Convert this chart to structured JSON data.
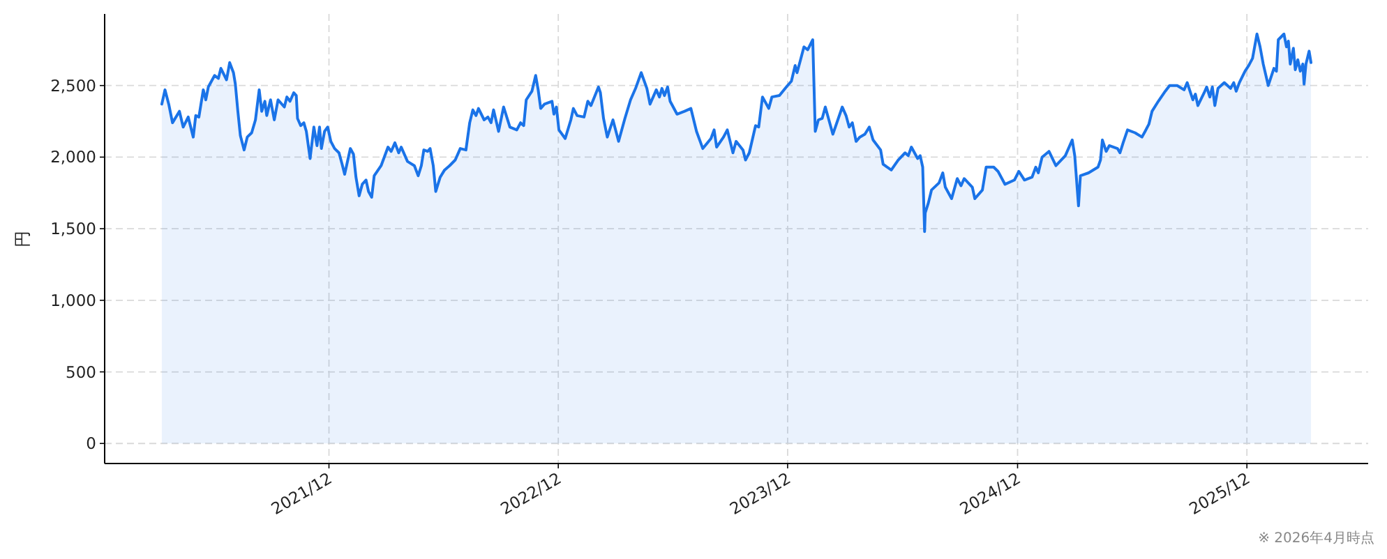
{
  "chart_data": {
    "type": "area",
    "ylabel": "円",
    "annotations": [
      "※ 2026年4月時点"
    ],
    "color": "#1a73e8",
    "grid": true,
    "xlim": [
      "2021-01-08",
      "2026-07-12"
    ],
    "ylim": [
      -140,
      3000
    ],
    "xticks": [
      {
        "value": "2021-12-31",
        "label": "2021/12"
      },
      {
        "value": "2022-12-31",
        "label": "2022/12"
      },
      {
        "value": "2023-12-31",
        "label": "2023/12"
      },
      {
        "value": "2024-12-31",
        "label": "2024/12"
      },
      {
        "value": "2025-12-31",
        "label": "2025/12"
      }
    ],
    "yticks": [
      0,
      500,
      {
        "value": 1000,
        "label": "1,000"
      },
      {
        "value": 1500,
        "label": "1,500"
      },
      {
        "value": 2000,
        "label": "2,000"
      },
      {
        "value": 2500,
        "label": "2,500"
      }
    ],
    "x": [
      "2021-04-09",
      "2021-04-14",
      "2021-04-20",
      "2021-04-26",
      "2021-05-07",
      "2021-05-13",
      "2021-05-21",
      "2021-05-29",
      "2021-06-02",
      "2021-06-07",
      "2021-06-14",
      "2021-06-18",
      "2021-06-22",
      "2021-07-02",
      "2021-07-08",
      "2021-07-12",
      "2021-07-21",
      "2021-07-26",
      "2021-08-01",
      "2021-08-04",
      "2021-08-08",
      "2021-08-12",
      "2021-08-18",
      "2021-08-23",
      "2021-08-30",
      "2021-09-05",
      "2021-09-11",
      "2021-09-15",
      "2021-09-20",
      "2021-09-23",
      "2021-09-29",
      "2021-10-05",
      "2021-10-11",
      "2021-10-21",
      "2021-10-25",
      "2021-10-30",
      "2021-11-05",
      "2021-11-09",
      "2021-11-11",
      "2021-11-16",
      "2021-11-21",
      "2021-11-25",
      "2021-12-01",
      "2021-12-07",
      "2021-12-12",
      "2021-12-16",
      "2021-12-19",
      "2021-12-24",
      "2021-12-29",
      "2022-01-03",
      "2022-01-09",
      "2022-01-16",
      "2022-01-21",
      "2022-01-25",
      "2022-01-30",
      "2022-02-03",
      "2022-02-08",
      "2022-02-12",
      "2022-02-17",
      "2022-02-22",
      "2022-02-28",
      "2022-03-04",
      "2022-03-09",
      "2022-03-13",
      "2022-03-24",
      "2022-04-04",
      "2022-04-09",
      "2022-04-15",
      "2022-04-21",
      "2022-04-25",
      "2022-05-05",
      "2022-05-16",
      "2022-05-22",
      "2022-05-27",
      "2022-05-31",
      "2022-06-06",
      "2022-06-10",
      "2022-06-15",
      "2022-06-19",
      "2022-06-26",
      "2022-07-03",
      "2022-07-11",
      "2022-07-20",
      "2022-07-28",
      "2022-08-06",
      "2022-08-12",
      "2022-08-17",
      "2022-08-22",
      "2022-08-26",
      "2022-09-04",
      "2022-09-10",
      "2022-09-15",
      "2022-09-19",
      "2022-09-27",
      "2022-10-05",
      "2022-10-15",
      "2022-10-26",
      "2022-11-01",
      "2022-11-06",
      "2022-11-10",
      "2022-11-19",
      "2022-11-25",
      "2022-11-29",
      "2022-12-03",
      "2022-12-09",
      "2022-12-21",
      "2022-12-24",
      "2022-12-28",
      "2023-01-01",
      "2023-01-11",
      "2023-01-20",
      "2023-01-24",
      "2023-01-30",
      "2023-02-10",
      "2023-02-16",
      "2023-02-21",
      "2023-03-05",
      "2023-03-08",
      "2023-03-13",
      "2023-03-19",
      "2023-03-28",
      "2023-04-06",
      "2023-04-16",
      "2023-04-25",
      "2023-05-03",
      "2023-05-12",
      "2023-05-21",
      "2023-05-26",
      "2023-06-05",
      "2023-06-10",
      "2023-06-14",
      "2023-06-18",
      "2023-06-23",
      "2023-06-27",
      "2023-07-08",
      "2023-07-20",
      "2023-07-30",
      "2023-08-08",
      "2023-08-18",
      "2023-08-31",
      "2023-09-05",
      "2023-09-09",
      "2023-09-20",
      "2023-09-26",
      "2023-10-05",
      "2023-10-10",
      "2023-10-21",
      "2023-10-25",
      "2023-10-31",
      "2023-11-10",
      "2023-11-15",
      "2023-11-21",
      "2023-12-01",
      "2023-12-06",
      "2023-12-18",
      "2023-12-29",
      "2024-01-06",
      "2024-01-12",
      "2024-01-15",
      "2024-01-20",
      "2024-01-26",
      "2024-02-01",
      "2024-02-09",
      "2024-02-13",
      "2024-02-18",
      "2024-02-24",
      "2024-02-29",
      "2024-03-12",
      "2024-03-27",
      "2024-04-02",
      "2024-04-07",
      "2024-04-12",
      "2024-04-18",
      "2024-04-24",
      "2024-05-02",
      "2024-05-09",
      "2024-05-15",
      "2024-05-27",
      "2024-05-31",
      "2024-06-13",
      "2024-06-24",
      "2024-07-05",
      "2024-07-10",
      "2024-07-15",
      "2024-07-25",
      "2024-07-29",
      "2024-08-02",
      "2024-08-05",
      "2024-08-06",
      "2024-08-11",
      "2024-08-16",
      "2024-08-28",
      "2024-09-03",
      "2024-09-07",
      "2024-09-17",
      "2024-09-26",
      "2024-10-02",
      "2024-10-07",
      "2024-10-20",
      "2024-10-24",
      "2024-11-05",
      "2024-11-11",
      "2024-11-23",
      "2024-11-30",
      "2024-12-11",
      "2024-12-26",
      "2025-01-02",
      "2025-01-11",
      "2025-01-23",
      "2025-01-29",
      "2025-02-02",
      "2025-02-08",
      "2025-02-19",
      "2025-03-02",
      "2025-03-17",
      "2025-03-28",
      "2025-04-01",
      "2025-04-07",
      "2025-04-10",
      "2025-04-23",
      "2025-05-08",
      "2025-05-12",
      "2025-05-15",
      "2025-05-21",
      "2025-05-26",
      "2025-06-08",
      "2025-06-12",
      "2025-06-17",
      "2025-06-24",
      "2025-07-06",
      "2025-07-17",
      "2025-07-22",
      "2025-07-28",
      "2025-08-02",
      "2025-08-12",
      "2025-08-23",
      "2025-08-30",
      "2025-09-11",
      "2025-09-22",
      "2025-09-27",
      "2025-10-06",
      "2025-10-10",
      "2025-10-14",
      "2025-10-24",
      "2025-10-28",
      "2025-11-02",
      "2025-11-06",
      "2025-11-10",
      "2025-11-15",
      "2025-11-25",
      "2025-12-05",
      "2025-12-10",
      "2025-12-14",
      "2025-12-19",
      "2025-12-28",
      "2026-01-03",
      "2026-01-09",
      "2026-01-16",
      "2026-01-21",
      "2026-01-26",
      "2026-02-03",
      "2026-02-12",
      "2026-02-16",
      "2026-02-19",
      "2026-02-28",
      "2026-03-04",
      "2026-03-07",
      "2026-03-10",
      "2026-03-15",
      "2026-03-18",
      "2026-03-22",
      "2026-03-26",
      "2026-03-30",
      "2026-04-01",
      "2026-04-04",
      "2026-04-09",
      "2026-04-12"
    ],
    "values": [
      2370,
      2470,
      2370,
      2240,
      2320,
      2210,
      2280,
      2140,
      2290,
      2280,
      2470,
      2400,
      2490,
      2570,
      2550,
      2620,
      2540,
      2660,
      2590,
      2510,
      2320,
      2150,
      2050,
      2140,
      2170,
      2260,
      2470,
      2320,
      2390,
      2290,
      2400,
      2260,
      2400,
      2350,
      2420,
      2390,
      2450,
      2430,
      2270,
      2220,
      2240,
      2180,
      1990,
      2210,
      2080,
      2210,
      2060,
      2180,
      2210,
      2110,
      2060,
      2030,
      1950,
      1880,
      1980,
      2060,
      2020,
      1860,
      1730,
      1810,
      1840,
      1760,
      1720,
      1870,
      1940,
      2070,
      2040,
      2100,
      2030,
      2070,
      1970,
      1940,
      1870,
      1940,
      2050,
      2040,
      2060,
      1940,
      1760,
      1860,
      1910,
      1940,
      1980,
      2060,
      2050,
      2240,
      2330,
      2290,
      2340,
      2260,
      2280,
      2240,
      2330,
      2180,
      2350,
      2210,
      2190,
      2240,
      2220,
      2400,
      2460,
      2570,
      2470,
      2340,
      2370,
      2390,
      2300,
      2350,
      2190,
      2130,
      2260,
      2340,
      2290,
      2280,
      2390,
      2360,
      2490,
      2450,
      2270,
      2140,
      2260,
      2110,
      2270,
      2400,
      2480,
      2590,
      2480,
      2370,
      2470,
      2420,
      2480,
      2430,
      2490,
      2390,
      2300,
      2320,
      2340,
      2180,
      2060,
      2130,
      2190,
      2070,
      2140,
      2190,
      2030,
      2110,
      2050,
      1980,
      2030,
      2220,
      2210,
      2420,
      2340,
      2420,
      2430,
      2490,
      2530,
      2640,
      2590,
      2670,
      2770,
      2750,
      2820,
      2180,
      2260,
      2270,
      2350,
      2160,
      2350,
      2290,
      2210,
      2240,
      2110,
      2140,
      2160,
      2210,
      2120,
      2050,
      1950,
      1910,
      1980,
      2030,
      2010,
      2070,
      1990,
      2010,
      1930,
      1480,
      1610,
      1680,
      1770,
      1820,
      1890,
      1790,
      1710,
      1850,
      1800,
      1850,
      1790,
      1710,
      1770,
      1930,
      1930,
      1900,
      1810,
      1840,
      1900,
      1840,
      1860,
      1930,
      1890,
      2000,
      2040,
      1940,
      2010,
      2120,
      2010,
      1660,
      1870,
      1890,
      1930,
      1980,
      2120,
      2040,
      2080,
      2060,
      2030,
      2100,
      2190,
      2170,
      2140,
      2180,
      2230,
      2320,
      2390,
      2460,
      2500,
      2500,
      2470,
      2520,
      2400,
      2440,
      2360,
      2450,
      2490,
      2420,
      2490,
      2360,
      2480,
      2520,
      2480,
      2520,
      2460,
      2520,
      2600,
      2640,
      2690,
      2860,
      2770,
      2650,
      2500,
      2620,
      2600,
      2820,
      2860,
      2770,
      2810,
      2650,
      2760,
      2610,
      2680,
      2600,
      2650,
      2510,
      2650,
      2740,
      2660
    ]
  }
}
